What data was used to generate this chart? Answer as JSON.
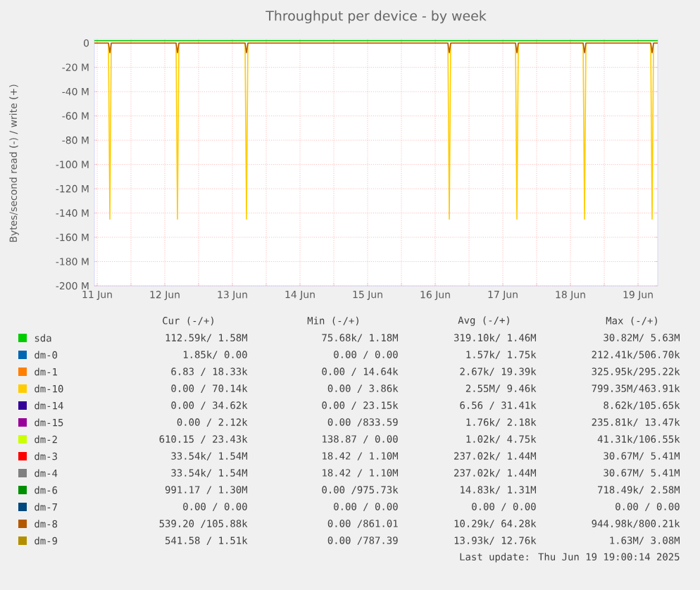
{
  "chart_data": {
    "type": "line",
    "title": "Throughput per device - by week",
    "ylabel": "Bytes/second read (-) / write (+)",
    "x": [
      "2025-06-11T11:00",
      "2025-06-11T16:00",
      "2025-06-11T16:30",
      "2025-06-11T17:00",
      "2025-06-12T16:00",
      "2025-06-12T16:30",
      "2025-06-12T17:00",
      "2025-06-13T16:30",
      "2025-06-13T17:00",
      "2025-06-13T17:30",
      "2025-06-16T16:30",
      "2025-06-16T17:00",
      "2025-06-16T17:30",
      "2025-06-17T16:30",
      "2025-06-17T17:00",
      "2025-06-17T17:30",
      "2025-06-18T16:30",
      "2025-06-18T17:00",
      "2025-06-18T17:30",
      "2025-06-19T16:30",
      "2025-06-19T17:00",
      "2025-06-19T17:30",
      "2025-06-19T19:00"
    ],
    "xlim": [
      "2025-06-11T11:00",
      "2025-06-19T19:00"
    ],
    "xticks": [
      {
        "value": "2025-06-11T12:00",
        "label": "11 Jun"
      },
      {
        "value": "2025-06-12T00:00",
        "label": null
      },
      {
        "value": "2025-06-12T12:00",
        "label": "12 Jun"
      },
      {
        "value": "2025-06-13T00:00",
        "label": null
      },
      {
        "value": "2025-06-13T12:00",
        "label": "13 Jun"
      },
      {
        "value": "2025-06-14T00:00",
        "label": null
      },
      {
        "value": "2025-06-14T12:00",
        "label": "14 Jun"
      },
      {
        "value": "2025-06-15T00:00",
        "label": null
      },
      {
        "value": "2025-06-15T12:00",
        "label": "15 Jun"
      },
      {
        "value": "2025-06-16T00:00",
        "label": null
      },
      {
        "value": "2025-06-16T12:00",
        "label": "16 Jun"
      },
      {
        "value": "2025-06-17T00:00",
        "label": null
      },
      {
        "value": "2025-06-17T12:00",
        "label": "17 Jun"
      },
      {
        "value": "2025-06-18T00:00",
        "label": null
      },
      {
        "value": "2025-06-18T12:00",
        "label": "18 Jun"
      },
      {
        "value": "2025-06-19T00:00",
        "label": null
      },
      {
        "value": "2025-06-19T12:00",
        "label": "19 Jun"
      }
    ],
    "ylim": [
      -200,
      3
    ],
    "yticks": [
      {
        "value": -200,
        "label": "-200 M"
      },
      {
        "value": -180,
        "label": "-180 M"
      },
      {
        "value": -160,
        "label": "-160 M"
      },
      {
        "value": -140,
        "label": "-140 M"
      },
      {
        "value": -120,
        "label": "-120 M"
      },
      {
        "value": -100,
        "label": "-100 M"
      },
      {
        "value": -80,
        "label": "-80 M"
      },
      {
        "value": -60,
        "label": "-60 M"
      },
      {
        "value": -40,
        "label": "-40 M"
      },
      {
        "value": -20,
        "label": "-20 M"
      },
      0
    ],
    "grid": true,
    "legend": "bottom",
    "series": [
      {
        "name": "sda",
        "color": "#00cc00",
        "values": [
          2,
          2,
          2,
          2,
          2,
          2,
          2,
          2,
          2,
          2,
          2,
          2,
          2,
          2,
          2,
          2,
          2,
          2,
          2,
          2,
          2,
          2,
          2
        ]
      },
      {
        "name": "dm-0",
        "color": "#0066b3",
        "values": [
          null,
          null,
          null,
          null,
          null,
          null,
          null,
          null,
          null,
          null,
          null,
          null,
          null,
          null,
          null,
          null,
          null,
          null,
          null,
          null,
          null,
          null,
          null
        ]
      },
      {
        "name": "dm-1",
        "color": "#ff8000",
        "values": [
          null,
          null,
          null,
          null,
          null,
          null,
          null,
          null,
          null,
          null,
          null,
          null,
          null,
          null,
          null,
          null,
          null,
          null,
          null,
          null,
          null,
          null,
          null
        ]
      },
      {
        "name": "dm-10",
        "color": "#ffcc00",
        "values": [
          0,
          0,
          -145,
          0,
          0,
          -145,
          0,
          0,
          -145,
          0,
          0,
          -145,
          0,
          0,
          -145,
          0,
          0,
          -145,
          0,
          0,
          -145,
          0,
          0
        ]
      },
      {
        "name": "dm-14",
        "color": "#330099",
        "values": [
          null,
          null,
          null,
          null,
          null,
          null,
          null,
          null,
          null,
          null,
          null,
          null,
          null,
          null,
          null,
          null,
          null,
          null,
          null,
          null,
          null,
          null,
          null
        ]
      },
      {
        "name": "dm-15",
        "color": "#990099",
        "values": [
          null,
          null,
          null,
          null,
          null,
          null,
          null,
          null,
          null,
          null,
          null,
          null,
          null,
          null,
          null,
          null,
          null,
          null,
          null,
          null,
          null,
          null,
          null
        ]
      },
      {
        "name": "dm-2",
        "color": "#ccff00",
        "values": [
          null,
          null,
          null,
          null,
          null,
          null,
          null,
          null,
          null,
          null,
          null,
          null,
          null,
          null,
          null,
          null,
          null,
          null,
          null,
          null,
          null,
          null,
          null
        ]
      },
      {
        "name": "dm-3",
        "color": "#ff0000",
        "values": [
          null,
          null,
          null,
          null,
          null,
          null,
          null,
          null,
          null,
          null,
          null,
          null,
          null,
          null,
          null,
          null,
          null,
          null,
          null,
          null,
          null,
          null,
          null
        ]
      },
      {
        "name": "dm-4",
        "color": "#808080",
        "values": [
          null,
          null,
          null,
          null,
          null,
          null,
          null,
          null,
          null,
          null,
          null,
          null,
          null,
          null,
          null,
          null,
          null,
          null,
          null,
          null,
          null,
          null,
          null
        ]
      },
      {
        "name": "dm-6",
        "color": "#008f00",
        "values": [
          null,
          null,
          null,
          null,
          null,
          null,
          null,
          null,
          null,
          null,
          null,
          null,
          null,
          null,
          null,
          null,
          null,
          null,
          null,
          null,
          null,
          null,
          null
        ]
      },
      {
        "name": "dm-7",
        "color": "#00487d",
        "values": [
          null,
          null,
          null,
          null,
          null,
          null,
          null,
          null,
          null,
          null,
          null,
          null,
          null,
          null,
          null,
          null,
          null,
          null,
          null,
          null,
          null,
          null,
          null
        ]
      },
      {
        "name": "dm-8",
        "color": "#b35a00",
        "values": [
          0,
          0,
          -8,
          0,
          0,
          -8,
          0,
          0,
          -8,
          0,
          0,
          -8,
          0,
          0,
          -8,
          0,
          0,
          -8,
          0,
          0,
          -8,
          0,
          0
        ]
      },
      {
        "name": "dm-9",
        "color": "#b38f00",
        "values": [
          null,
          null,
          null,
          null,
          null,
          null,
          null,
          null,
          null,
          null,
          null,
          null,
          null,
          null,
          null,
          null,
          null,
          null,
          null,
          null,
          null,
          null,
          null
        ]
      }
    ],
    "annotations": [
      "Cur (-/+)",
      "Min (-/+)",
      "Avg (-/+)",
      "Max (-/+)",
      "112.59k/ 1.58M",
      "75.68k/ 1.18M",
      "319.10k/ 1.46M",
      "30.82M/ 5.63M",
      "1.85k/ 0.00",
      "0.00 / 0.00",
      "1.57k/ 1.75k",
      "212.41k/506.70k",
      "6.83 / 18.33k",
      "0.00 / 14.64k",
      "2.67k/ 19.39k",
      "325.95k/295.22k",
      "0.00 / 70.14k",
      "0.00 / 3.86k",
      "2.55M/ 9.46k",
      "799.35M/463.91k",
      "0.00 / 34.62k",
      "0.00 / 23.15k",
      "6.56 / 31.41k",
      "8.62k/105.65k",
      "0.00 / 2.12k",
      "0.00 /833.59",
      "1.76k/ 2.18k",
      "235.81k/ 13.47k",
      "610.15 / 23.43k",
      "138.87 / 0.00",
      "1.02k/ 4.75k",
      "41.31k/106.55k",
      "33.54k/ 1.54M",
      "18.42 / 1.10M",
      "237.02k/ 1.44M",
      "30.67M/ 5.41M",
      "33.54k/ 1.54M",
      "18.42 / 1.10M",
      "237.02k/ 1.44M",
      "30.67M/ 5.41M",
      "991.17 / 1.30M",
      "0.00 /975.73k",
      "14.83k/ 1.31M",
      "718.49k/ 2.58M",
      "0.00 / 0.00",
      "0.00 / 0.00",
      "0.00 / 0.00",
      "0.00 / 0.00",
      "539.20 /105.88k",
      "0.00 /861.01",
      "10.29k/ 64.28k",
      "944.98k/800.21k",
      "541.58 / 1.51k",
      "0.00 /787.39",
      "13.93k/ 12.76k",
      "1.63M/ 3.08M",
      "Last update: Thu Jun 19 19:00:14 2025"
    ]
  }
}
